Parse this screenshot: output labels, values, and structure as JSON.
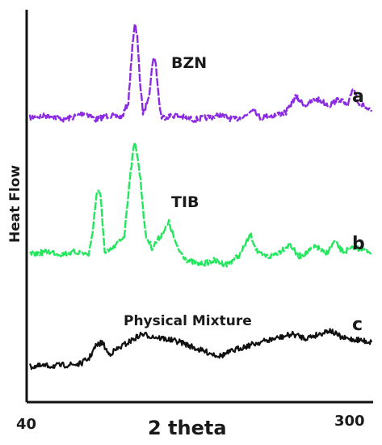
{
  "chart_data": {
    "type": "line",
    "xlabel": "2 theta",
    "ylabel": "Heat Flow",
    "x_tick_labels": [
      "40",
      "300"
    ],
    "xlim": [
      40,
      300
    ],
    "grid": false,
    "series": [
      {
        "name": "BZN",
        "letter": "a",
        "color": "#8a2be2",
        "style": "dashed",
        "points": [
          [
            40,
            0.1
          ],
          [
            55,
            0.12
          ],
          [
            65,
            0.08
          ],
          [
            72,
            0.1
          ],
          [
            82,
            0.15
          ],
          [
            90,
            0.08
          ],
          [
            100,
            0.12
          ],
          [
            110,
            0.1
          ],
          [
            115,
            0.25
          ],
          [
            118,
            0.8
          ],
          [
            120,
            1.0
          ],
          [
            122,
            0.85
          ],
          [
            124,
            0.4
          ],
          [
            126,
            0.15
          ],
          [
            128,
            0.2
          ],
          [
            131,
            0.35
          ],
          [
            134,
            0.7
          ],
          [
            136,
            0.6
          ],
          [
            138,
            0.3
          ],
          [
            140,
            0.1
          ],
          [
            150,
            0.12
          ],
          [
            165,
            0.08
          ],
          [
            175,
            0.1
          ],
          [
            185,
            0.12
          ],
          [
            195,
            0.08
          ],
          [
            205,
            0.12
          ],
          [
            210,
            0.2
          ],
          [
            215,
            0.1
          ],
          [
            225,
            0.12
          ],
          [
            235,
            0.15
          ],
          [
            242,
            0.3
          ],
          [
            250,
            0.22
          ],
          [
            258,
            0.28
          ],
          [
            268,
            0.22
          ],
          [
            276,
            0.28
          ],
          [
            282,
            0.2
          ],
          [
            286,
            0.4
          ],
          [
            290,
            0.25
          ],
          [
            300,
            0.15
          ]
        ]
      },
      {
        "name": "TIB",
        "letter": "b",
        "color": "#22e65c",
        "style": "dashed",
        "points": [
          [
            40,
            0.1
          ],
          [
            55,
            0.12
          ],
          [
            65,
            0.1
          ],
          [
            75,
            0.12
          ],
          [
            85,
            0.1
          ],
          [
            88,
            0.3
          ],
          [
            91,
            0.6
          ],
          [
            94,
            0.55
          ],
          [
            97,
            0.1
          ],
          [
            104,
            0.15
          ],
          [
            112,
            0.25
          ],
          [
            116,
            0.7
          ],
          [
            120,
            1.0
          ],
          [
            124,
            0.7
          ],
          [
            128,
            0.25
          ],
          [
            133,
            0.15
          ],
          [
            140,
            0.25
          ],
          [
            146,
            0.35
          ],
          [
            152,
            0.15
          ],
          [
            160,
            0.05
          ],
          [
            170,
            0.02
          ],
          [
            180,
            0.05
          ],
          [
            190,
            0.02
          ],
          [
            200,
            0.1
          ],
          [
            208,
            0.25
          ],
          [
            214,
            0.1
          ],
          [
            222,
            0.08
          ],
          [
            230,
            0.12
          ],
          [
            238,
            0.18
          ],
          [
            244,
            0.08
          ],
          [
            252,
            0.12
          ],
          [
            258,
            0.16
          ],
          [
            265,
            0.1
          ],
          [
            272,
            0.2
          ],
          [
            278,
            0.12
          ],
          [
            288,
            0.15
          ],
          [
            300,
            0.12
          ]
        ]
      },
      {
        "name": "Physical Mixture",
        "letter": "c",
        "color": "#111111",
        "style": "solid",
        "points": [
          [
            40,
            0.05
          ],
          [
            60,
            0.06
          ],
          [
            78,
            0.08
          ],
          [
            85,
            0.15
          ],
          [
            90,
            0.3
          ],
          [
            95,
            0.35
          ],
          [
            100,
            0.2
          ],
          [
            110,
            0.3
          ],
          [
            125,
            0.45
          ],
          [
            140,
            0.4
          ],
          [
            155,
            0.35
          ],
          [
            170,
            0.25
          ],
          [
            185,
            0.18
          ],
          [
            200,
            0.28
          ],
          [
            215,
            0.35
          ],
          [
            228,
            0.4
          ],
          [
            240,
            0.45
          ],
          [
            250,
            0.4
          ],
          [
            260,
            0.45
          ],
          [
            268,
            0.5
          ],
          [
            278,
            0.4
          ],
          [
            290,
            0.38
          ],
          [
            300,
            0.35
          ]
        ]
      }
    ]
  }
}
